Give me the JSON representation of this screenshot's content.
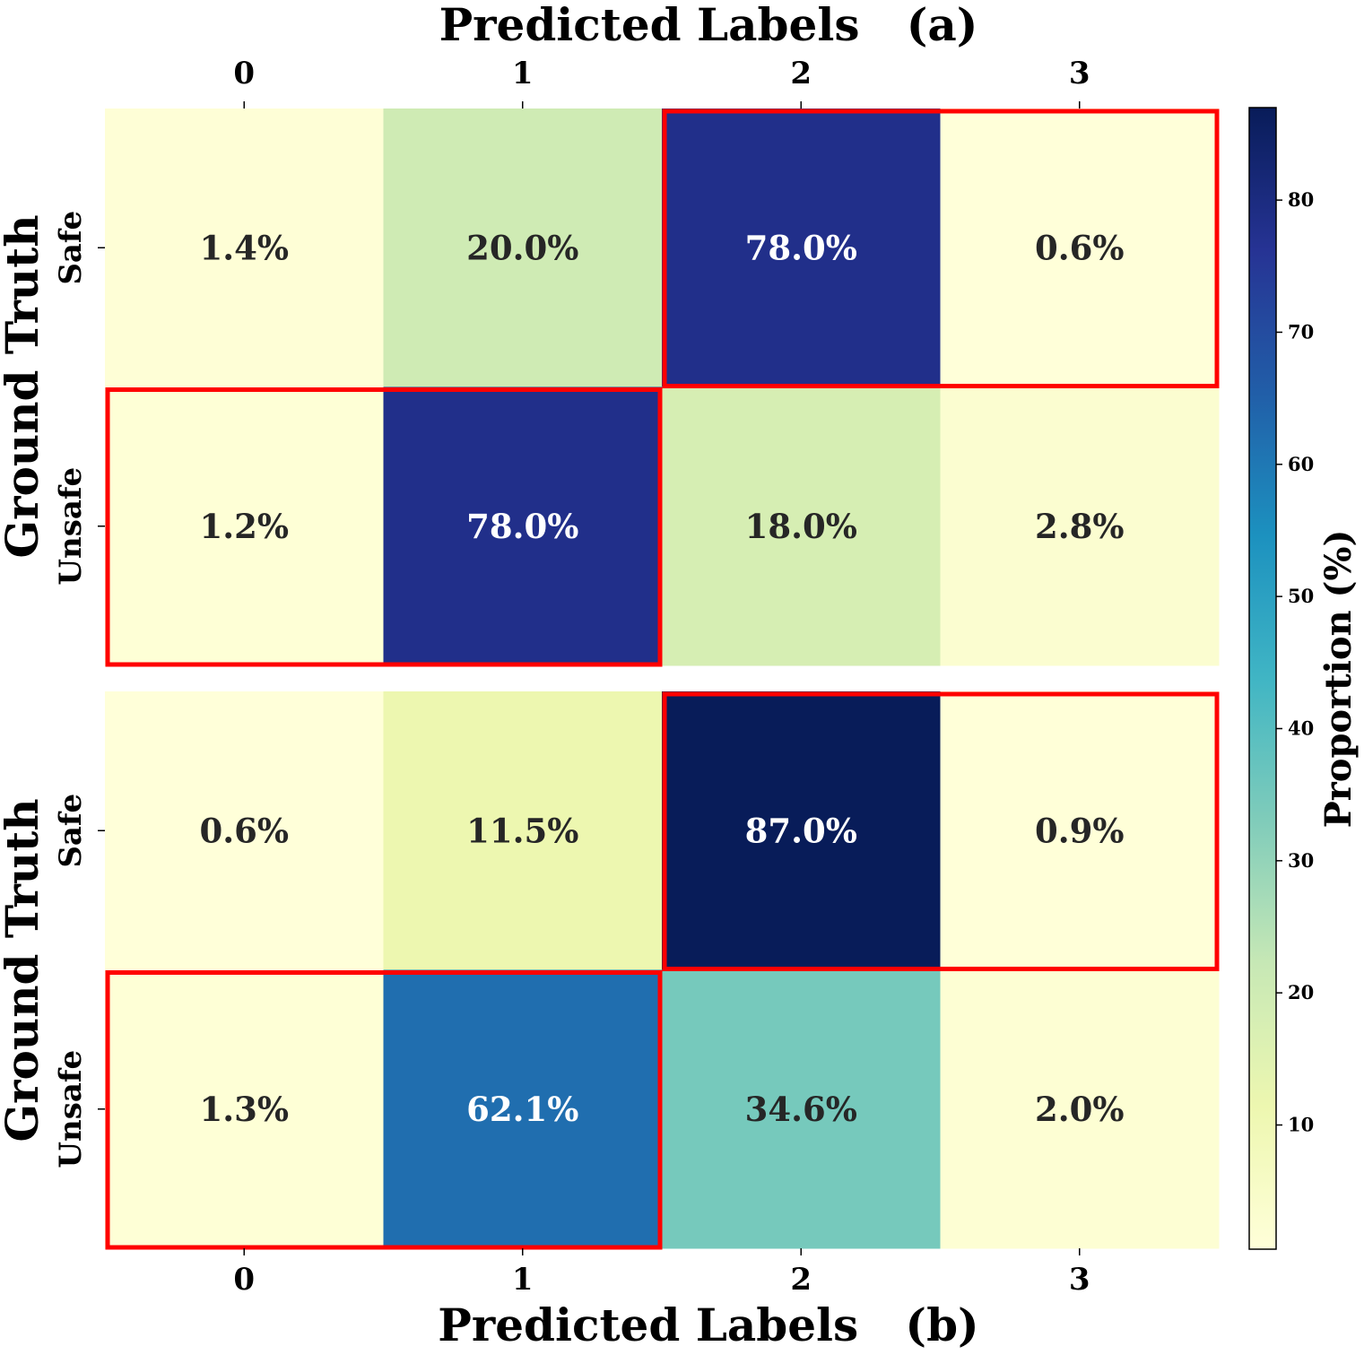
{
  "chart_data": [
    {
      "type": "heatmap",
      "title": "Predicted Labels   (a)",
      "xlabel": "Predicted Labels   (a)",
      "ylabel": "Ground Truth",
      "x_categories": [
        "0",
        "1",
        "2",
        "3"
      ],
      "y_categories": [
        "Safe",
        "Unsafe"
      ],
      "values": [
        [
          1.4,
          20.0,
          78.0,
          0.6
        ],
        [
          1.2,
          78.0,
          18.0,
          2.8
        ]
      ],
      "cell_labels": [
        [
          "1.4%",
          "20.0%",
          "78.0%",
          "0.6%"
        ],
        [
          "1.2%",
          "78.0%",
          "18.0%",
          "2.8%"
        ]
      ],
      "highlights": [
        {
          "row": 0,
          "col_start": 2,
          "col_end": 3
        },
        {
          "row": 1,
          "col_start": 0,
          "col_end": 1
        }
      ]
    },
    {
      "type": "heatmap",
      "xlabel": "Predicted Labels   (b)",
      "ylabel": "Ground Truth",
      "x_categories": [
        "0",
        "1",
        "2",
        "3"
      ],
      "y_categories": [
        "Safe",
        "Unsafe"
      ],
      "values": [
        [
          0.6,
          11.5,
          87.0,
          0.9
        ],
        [
          1.3,
          62.1,
          34.6,
          2.0
        ]
      ],
      "cell_labels": [
        [
          "0.6%",
          "11.5%",
          "87.0%",
          "0.9%"
        ],
        [
          "1.3%",
          "62.1%",
          "34.6%",
          "2.0%"
        ]
      ],
      "highlights": [
        {
          "row": 0,
          "col_start": 2,
          "col_end": 3
        },
        {
          "row": 1,
          "col_start": 0,
          "col_end": 1
        }
      ]
    }
  ],
  "colorbar": {
    "label": "Proportion (%)",
    "min": 0.6,
    "max": 87.0,
    "ticks": [
      10,
      20,
      30,
      40,
      50,
      60,
      70,
      80
    ],
    "tick_labels": [
      "10",
      "20",
      "30",
      "40",
      "50",
      "60",
      "70",
      "80"
    ],
    "colormap": "YlGnBu"
  },
  "colors": {
    "highlight": "#ff0000",
    "text_dark": "#262626",
    "text_light": "#ffffff"
  }
}
